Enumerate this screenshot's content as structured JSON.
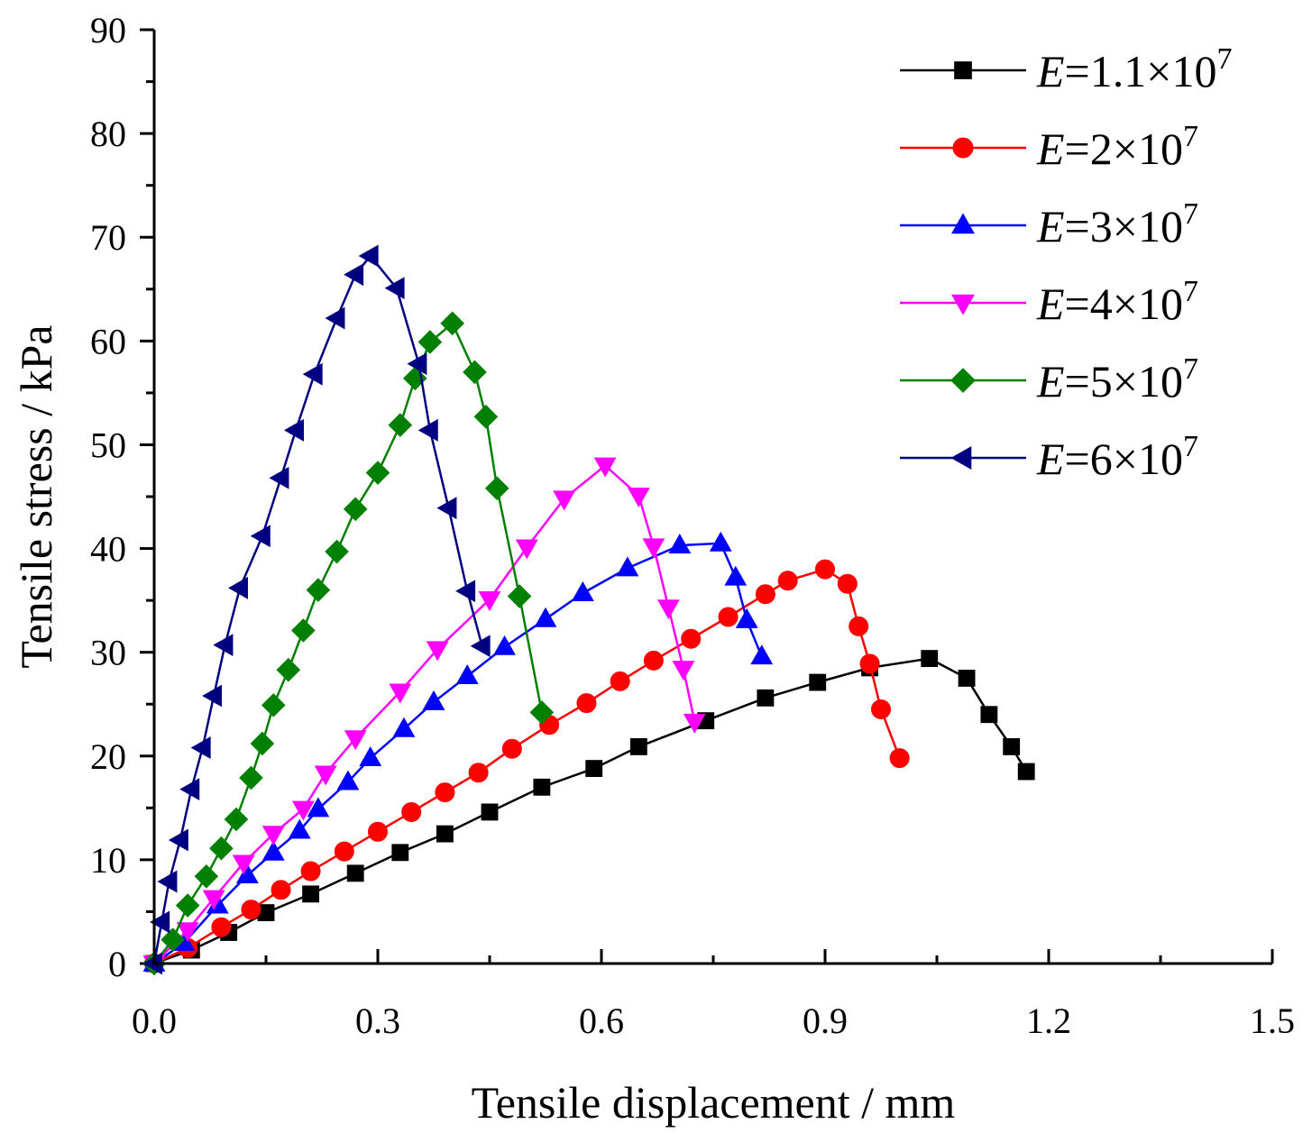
{
  "chart_data": {
    "type": "line",
    "title": "",
    "xlabel": "Tensile displacement / mm",
    "ylabel": "Tensile stress / kPa",
    "xlim": [
      0,
      1.5
    ],
    "ylim": [
      0,
      90
    ],
    "xticks": [
      "0.0",
      "0.3",
      "0.6",
      "0.9",
      "1.2",
      "1.5"
    ],
    "yticks": [
      "0",
      "10",
      "20",
      "30",
      "40",
      "50",
      "60",
      "70",
      "80",
      "90"
    ],
    "legend_position": "top-right",
    "series": [
      {
        "name": "E=1.1×10^7",
        "legend": {
          "symbol": "E",
          "mantissa": "=1.1×10",
          "exponent": "7"
        },
        "color": "#000000",
        "marker": "square",
        "points": [
          [
            0.0,
            0.0
          ],
          [
            0.05,
            1.3
          ],
          [
            0.1,
            3.0
          ],
          [
            0.15,
            4.9
          ],
          [
            0.21,
            6.7
          ],
          [
            0.27,
            8.7
          ],
          [
            0.33,
            10.7
          ],
          [
            0.39,
            12.5
          ],
          [
            0.45,
            14.6
          ],
          [
            0.52,
            17.0
          ],
          [
            0.59,
            18.8
          ],
          [
            0.65,
            20.9
          ],
          [
            0.74,
            23.4
          ],
          [
            0.82,
            25.6
          ],
          [
            0.89,
            27.1
          ],
          [
            0.96,
            28.5
          ],
          [
            1.04,
            29.4
          ],
          [
            1.09,
            27.5
          ],
          [
            1.12,
            24.0
          ],
          [
            1.15,
            20.9
          ],
          [
            1.17,
            18.5
          ]
        ]
      },
      {
        "name": "E=2×10^7",
        "legend": {
          "symbol": "E",
          "mantissa": "=2×10",
          "exponent": "7"
        },
        "color": "#ff0000",
        "marker": "circle",
        "points": [
          [
            0.0,
            0.0
          ],
          [
            0.045,
            1.5
          ],
          [
            0.09,
            3.5
          ],
          [
            0.13,
            5.2
          ],
          [
            0.17,
            7.1
          ],
          [
            0.21,
            8.9
          ],
          [
            0.255,
            10.8
          ],
          [
            0.3,
            12.7
          ],
          [
            0.345,
            14.6
          ],
          [
            0.39,
            16.5
          ],
          [
            0.435,
            18.4
          ],
          [
            0.48,
            20.7
          ],
          [
            0.53,
            23.0
          ],
          [
            0.58,
            25.1
          ],
          [
            0.625,
            27.2
          ],
          [
            0.67,
            29.2
          ],
          [
            0.72,
            31.3
          ],
          [
            0.77,
            33.4
          ],
          [
            0.82,
            35.6
          ],
          [
            0.85,
            36.9
          ],
          [
            0.9,
            38.0
          ],
          [
            0.93,
            36.6
          ],
          [
            0.945,
            32.5
          ],
          [
            0.96,
            28.9
          ],
          [
            0.975,
            24.5
          ],
          [
            1.0,
            19.8
          ]
        ]
      },
      {
        "name": "E=3×10^7",
        "legend": {
          "symbol": "E",
          "mantissa": "=3×10",
          "exponent": "7"
        },
        "color": "#0000ff",
        "marker": "triangle-up",
        "points": [
          [
            0.0,
            0.0
          ],
          [
            0.04,
            2.0
          ],
          [
            0.085,
            5.6
          ],
          [
            0.125,
            8.5
          ],
          [
            0.16,
            10.7
          ],
          [
            0.195,
            12.8
          ],
          [
            0.22,
            14.9
          ],
          [
            0.26,
            17.5
          ],
          [
            0.29,
            19.8
          ],
          [
            0.335,
            22.6
          ],
          [
            0.375,
            25.2
          ],
          [
            0.42,
            27.7
          ],
          [
            0.47,
            30.5
          ],
          [
            0.525,
            33.2
          ],
          [
            0.575,
            35.7
          ],
          [
            0.635,
            38.1
          ],
          [
            0.705,
            40.3
          ],
          [
            0.76,
            40.5
          ],
          [
            0.78,
            37.2
          ],
          [
            0.795,
            33.1
          ],
          [
            0.815,
            29.6
          ]
        ]
      },
      {
        "name": "E=4×10^7",
        "legend": {
          "symbol": "E",
          "mantissa": "=4×10",
          "exponent": "7"
        },
        "color": "#ff00ff",
        "marker": "triangle-down",
        "points": [
          [
            0.0,
            0.0
          ],
          [
            0.045,
            3.2
          ],
          [
            0.08,
            6.3
          ],
          [
            0.12,
            9.7
          ],
          [
            0.16,
            12.5
          ],
          [
            0.2,
            14.9
          ],
          [
            0.23,
            18.3
          ],
          [
            0.27,
            21.7
          ],
          [
            0.33,
            26.2
          ],
          [
            0.38,
            30.3
          ],
          [
            0.45,
            35.1
          ],
          [
            0.5,
            40.1
          ],
          [
            0.55,
            44.8
          ],
          [
            0.605,
            48.0
          ],
          [
            0.65,
            45.1
          ],
          [
            0.67,
            40.2
          ],
          [
            0.69,
            34.3
          ],
          [
            0.71,
            28.4
          ],
          [
            0.725,
            23.3
          ]
        ]
      },
      {
        "name": "E=5×10^7",
        "legend": {
          "symbol": "E",
          "mantissa": "=5×10",
          "exponent": "7"
        },
        "color": "#008000",
        "marker": "diamond",
        "points": [
          [
            0.0,
            0.0
          ],
          [
            0.025,
            2.3
          ],
          [
            0.045,
            5.6
          ],
          [
            0.07,
            8.4
          ],
          [
            0.09,
            11.1
          ],
          [
            0.11,
            13.9
          ],
          [
            0.13,
            17.9
          ],
          [
            0.145,
            21.2
          ],
          [
            0.16,
            24.9
          ],
          [
            0.18,
            28.3
          ],
          [
            0.2,
            32.1
          ],
          [
            0.22,
            36.0
          ],
          [
            0.245,
            39.7
          ],
          [
            0.27,
            43.8
          ],
          [
            0.3,
            47.3
          ],
          [
            0.33,
            51.9
          ],
          [
            0.35,
            56.4
          ],
          [
            0.37,
            59.9
          ],
          [
            0.4,
            61.7
          ],
          [
            0.43,
            57.0
          ],
          [
            0.445,
            52.7
          ],
          [
            0.46,
            45.8
          ],
          [
            0.49,
            35.4
          ],
          [
            0.52,
            24.2
          ]
        ]
      },
      {
        "name": "E=6×10^7",
        "legend": {
          "symbol": "E",
          "mantissa": "=6×10",
          "exponent": "7"
        },
        "color": "#000080",
        "marker": "triangle-left",
        "points": [
          [
            0.0,
            0.0
          ],
          [
            0.01,
            4.0
          ],
          [
            0.02,
            7.9
          ],
          [
            0.035,
            11.9
          ],
          [
            0.05,
            16.8
          ],
          [
            0.065,
            20.8
          ],
          [
            0.08,
            25.8
          ],
          [
            0.095,
            30.7
          ],
          [
            0.115,
            36.2
          ],
          [
            0.145,
            41.2
          ],
          [
            0.17,
            46.8
          ],
          [
            0.19,
            51.4
          ],
          [
            0.215,
            56.8
          ],
          [
            0.245,
            62.2
          ],
          [
            0.27,
            66.4
          ],
          [
            0.29,
            68.2
          ],
          [
            0.325,
            65.1
          ],
          [
            0.355,
            57.8
          ],
          [
            0.37,
            51.4
          ],
          [
            0.395,
            43.9
          ],
          [
            0.42,
            35.9
          ],
          [
            0.44,
            30.6
          ]
        ]
      }
    ]
  }
}
